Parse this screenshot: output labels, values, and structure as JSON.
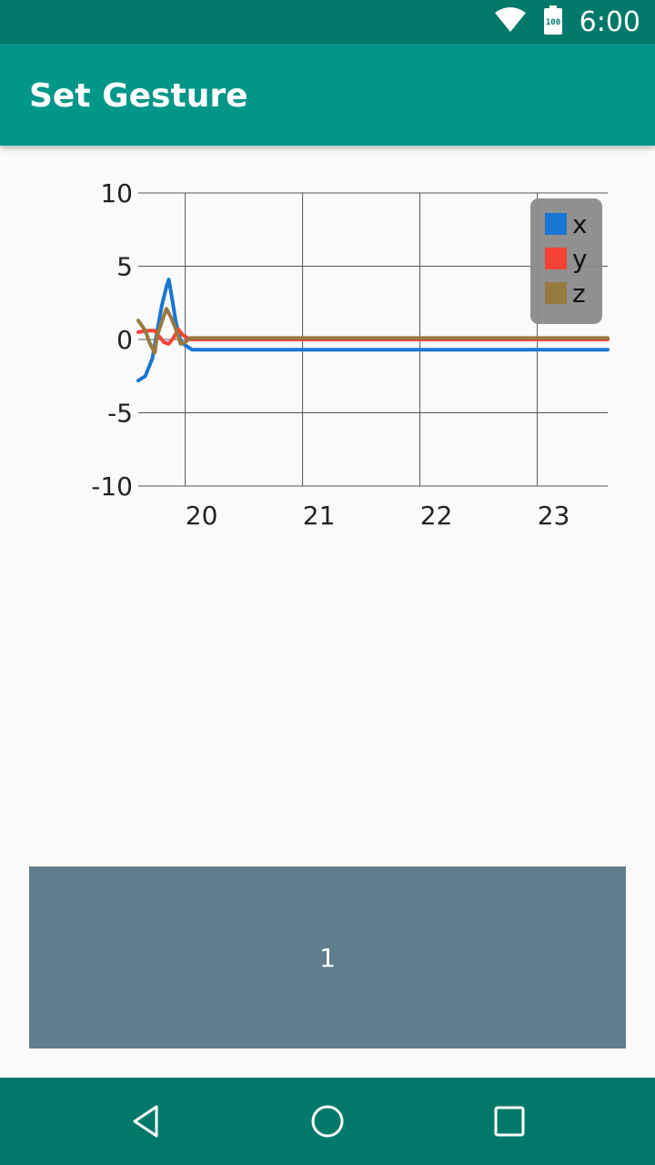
{
  "status_bar": {
    "time": "6:00",
    "battery_level": "100",
    "icons": [
      "wifi-icon",
      "battery-icon"
    ]
  },
  "app_bar": {
    "title": "Set Gesture",
    "color": "#009688"
  },
  "chart_data": {
    "type": "line",
    "title": "",
    "xlabel": "",
    "ylabel": "",
    "xlim": [
      19.6,
      23.6
    ],
    "ylim": [
      -10,
      10
    ],
    "x_ticks": [
      20,
      21,
      22,
      23
    ],
    "x_tick_labels": [
      "20",
      "21",
      "22",
      "23"
    ],
    "y_ticks": [
      10,
      5,
      0,
      -5,
      -10
    ],
    "y_tick_labels": [
      "10",
      "5",
      "0",
      "-5",
      "-10"
    ],
    "grid": true,
    "legend_position": "top-right",
    "series": [
      {
        "name": "x",
        "color": "#1976d2",
        "points": [
          [
            19.6,
            -2.8
          ],
          [
            19.66,
            -2.5
          ],
          [
            19.72,
            -1.3
          ],
          [
            19.76,
            0.5
          ],
          [
            19.8,
            2.3
          ],
          [
            19.84,
            3.6
          ],
          [
            19.86,
            4.1
          ],
          [
            19.88,
            3.2
          ],
          [
            19.92,
            1.2
          ],
          [
            19.96,
            -0.1
          ],
          [
            20.0,
            -0.4
          ],
          [
            20.04,
            -0.6
          ],
          [
            20.06,
            -0.7
          ],
          [
            23.6,
            -0.7
          ]
        ]
      },
      {
        "name": "y",
        "color": "#f44336",
        "points": [
          [
            19.6,
            0.5
          ],
          [
            19.68,
            0.6
          ],
          [
            19.74,
            0.6
          ],
          [
            19.78,
            0.2
          ],
          [
            19.82,
            -0.2
          ],
          [
            19.86,
            -0.3
          ],
          [
            19.9,
            0.1
          ],
          [
            19.94,
            0.7
          ],
          [
            19.98,
            0.3
          ],
          [
            20.04,
            0.0
          ],
          [
            23.6,
            0.0
          ]
        ]
      },
      {
        "name": "z",
        "color": "#967a3f",
        "points": [
          [
            19.6,
            1.3
          ],
          [
            19.66,
            0.6
          ],
          [
            19.7,
            -0.3
          ],
          [
            19.74,
            -0.9
          ],
          [
            19.76,
            0.2
          ],
          [
            19.8,
            1.2
          ],
          [
            19.84,
            2.1
          ],
          [
            19.88,
            1.5
          ],
          [
            19.92,
            0.7
          ],
          [
            19.96,
            -0.3
          ],
          [
            20.0,
            -0.2
          ],
          [
            20.04,
            0.1
          ],
          [
            23.6,
            0.1
          ]
        ]
      }
    ]
  },
  "gesture_button": {
    "label": "1",
    "color": "#607d8b"
  },
  "nav_bar": {
    "buttons": [
      "back-icon",
      "home-icon",
      "recents-icon"
    ]
  }
}
